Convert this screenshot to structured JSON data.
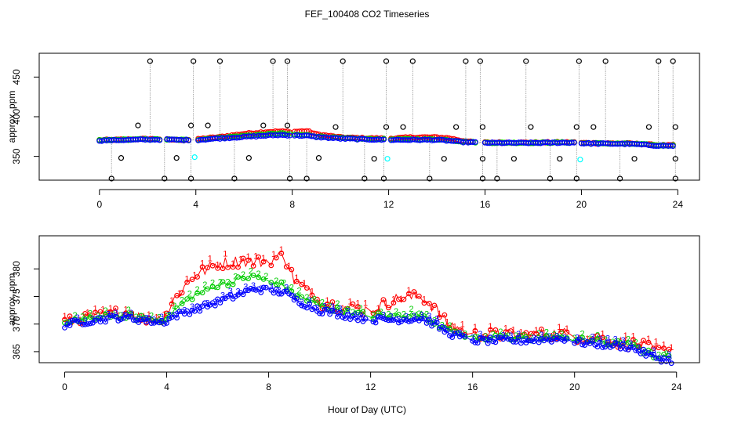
{
  "chart_data": [
    {
      "type": "scatter",
      "title": "FEF_100408  CO2 Timeseries",
      "xlabel": "",
      "ylabel": "approx. ppm",
      "xlim": [
        -2.5,
        24.9
      ],
      "ylim": [
        320,
        480
      ],
      "xticks": [
        0,
        4,
        8,
        12,
        16,
        20,
        24
      ],
      "xtick_labels": [
        "0",
        "4",
        "8",
        "12",
        "16",
        "20",
        "24"
      ],
      "yticks": [
        350,
        400,
        450
      ],
      "ytick_labels": [
        "350",
        "400",
        "450"
      ],
      "colors": {
        "series_1": "#ff0000",
        "series_2": "#00cc00",
        "series_3": "#0000ff",
        "cal_black": "#000000",
        "cal_cyan": "#00ffff",
        "connector": "#888888"
      },
      "cal_spikes_high": [
        2.1,
        3.9,
        5.0,
        7.2,
        7.8,
        10.1,
        11.9,
        13.0,
        15.2,
        15.8,
        17.7,
        19.9,
        21.0,
        23.2,
        23.8
      ],
      "cal_spikes_low": [
        0.5,
        2.7,
        3.8,
        5.6,
        7.9,
        8.6,
        11.0,
        11.8,
        13.7,
        15.9,
        16.5,
        18.7,
        19.8,
        21.6,
        23.9
      ],
      "cal_mid_points": [
        [
          0.9,
          348
        ],
        [
          1.6,
          389
        ],
        [
          3.2,
          348
        ],
        [
          3.8,
          389
        ],
        [
          4.5,
          389
        ],
        [
          6.2,
          348
        ],
        [
          6.8,
          389
        ],
        [
          7.8,
          389
        ],
        [
          9.1,
          348
        ],
        [
          9.8,
          387
        ],
        [
          11.4,
          347
        ],
        [
          11.9,
          387
        ],
        [
          12.6,
          387
        ],
        [
          14.3,
          347
        ],
        [
          14.8,
          387
        ],
        [
          15.9,
          387
        ],
        [
          15.9,
          347
        ],
        [
          17.2,
          347
        ],
        [
          17.9,
          387
        ],
        [
          19.1,
          347
        ],
        [
          19.8,
          387
        ],
        [
          20.5,
          387
        ],
        [
          22.2,
          347
        ],
        [
          22.8,
          387
        ],
        [
          23.9,
          387
        ],
        [
          23.9,
          347
        ]
      ],
      "cal_cyan_points": [
        [
          3.95,
          349
        ],
        [
          11.95,
          347
        ],
        [
          19.95,
          346
        ]
      ],
      "profile": {
        "x": [
          0,
          1,
          2,
          2.5,
          3,
          3.5,
          4,
          4.3,
          5,
          6,
          7,
          7.5,
          8,
          8.6,
          9,
          10,
          11,
          12,
          13,
          14,
          14.5,
          15,
          15.5,
          16,
          18,
          19.7,
          20,
          21,
          22,
          22.5,
          23,
          23.5,
          23.9
        ],
        "s1": [
          370.5,
          371.2,
          372,
          371.6,
          371,
          370.8,
          371,
          372.5,
          374.5,
          378.5,
          381,
          381.5,
          381,
          382,
          378,
          374,
          373,
          372.5,
          374,
          374,
          373,
          370,
          368,
          367.5,
          367.4,
          367.8,
          367,
          366.5,
          366.2,
          365.5,
          364.5,
          364,
          364
        ],
        "s2": [
          370.3,
          371,
          371.6,
          371.4,
          371,
          370.8,
          371,
          371.8,
          373.5,
          376,
          378,
          379,
          377.5,
          377,
          375.5,
          373,
          372,
          371.5,
          371.5,
          371.5,
          370.5,
          369,
          368,
          367.2,
          367.2,
          367.6,
          366.7,
          366.3,
          366,
          365.2,
          364.2,
          363.8,
          363.7
        ],
        "s3": [
          370,
          370.7,
          371.2,
          371.2,
          370.9,
          370.6,
          370.6,
          371.2,
          372.8,
          374.5,
          376.3,
          377,
          376.5,
          376,
          374.5,
          372.5,
          371.5,
          370.8,
          370.8,
          370.8,
          369.8,
          368.3,
          367.6,
          367,
          367,
          367.4,
          366.5,
          366,
          365.7,
          364.8,
          363.8,
          363.4,
          363.3
        ]
      }
    },
    {
      "type": "scatter",
      "xlabel": "Hour of Day (UTC)",
      "ylabel": "approx. ppm",
      "xlim": [
        -1,
        24.9
      ],
      "ylim": [
        363,
        386
      ],
      "xticks": [
        0,
        4,
        8,
        12,
        16,
        20,
        24
      ],
      "xtick_labels": [
        "0",
        "4",
        "8",
        "12",
        "16",
        "20",
        "24"
      ],
      "yticks": [
        365,
        370,
        375,
        380
      ],
      "ytick_labels": [
        "365",
        "370",
        "375",
        "380"
      ],
      "series": [
        {
          "name": "1",
          "color": "#ff0000",
          "glyph": "1"
        },
        {
          "name": "2",
          "color": "#00cc00",
          "glyph": "2"
        },
        {
          "name": "3",
          "color": "#0000ff",
          "glyph": "3"
        }
      ],
      "profile": {
        "x": [
          0,
          1,
          2,
          2.5,
          3,
          3.6,
          3.7,
          4,
          4.3,
          5,
          6,
          7,
          7.5,
          8,
          8.6,
          9,
          10,
          11,
          12,
          13,
          14,
          14.5,
          15,
          15.6,
          16,
          18,
          19.7,
          20,
          21,
          22,
          22.5,
          23,
          23.5,
          23.9
        ],
        "s1": [
          370.3,
          371,
          372,
          372,
          371.2,
          370.8,
          371,
          372,
          374.5,
          378.5,
          381,
          381.5,
          381.2,
          381.5,
          382.5,
          378,
          374,
          373,
          372.5,
          374.5,
          375,
          373,
          370,
          369,
          368,
          368,
          368.3,
          367.8,
          367.3,
          366.5,
          366.2,
          365.5,
          365,
          365.8
        ],
        "s2": [
          370.1,
          370.8,
          371.5,
          371.4,
          371,
          370.6,
          370.6,
          371.2,
          372.5,
          375,
          377,
          378.3,
          378.7,
          377.5,
          377,
          375.5,
          373.3,
          372.3,
          371.5,
          371.5,
          371.8,
          370.5,
          369,
          368,
          367.5,
          367.3,
          367.6,
          367.2,
          366.7,
          366.3,
          365.5,
          364.5,
          364,
          363.8
        ],
        "s3": [
          369.9,
          370.6,
          371.2,
          371.1,
          370.8,
          370.4,
          370.3,
          370.6,
          371.5,
          372.5,
          374,
          375.6,
          376.5,
          376,
          375.8,
          374.5,
          372.5,
          371.6,
          370.8,
          370.8,
          371,
          370,
          368.5,
          367.5,
          367,
          367,
          367.4,
          366.8,
          366.3,
          366,
          365.2,
          364.2,
          363.6,
          363.4
        ]
      }
    }
  ]
}
